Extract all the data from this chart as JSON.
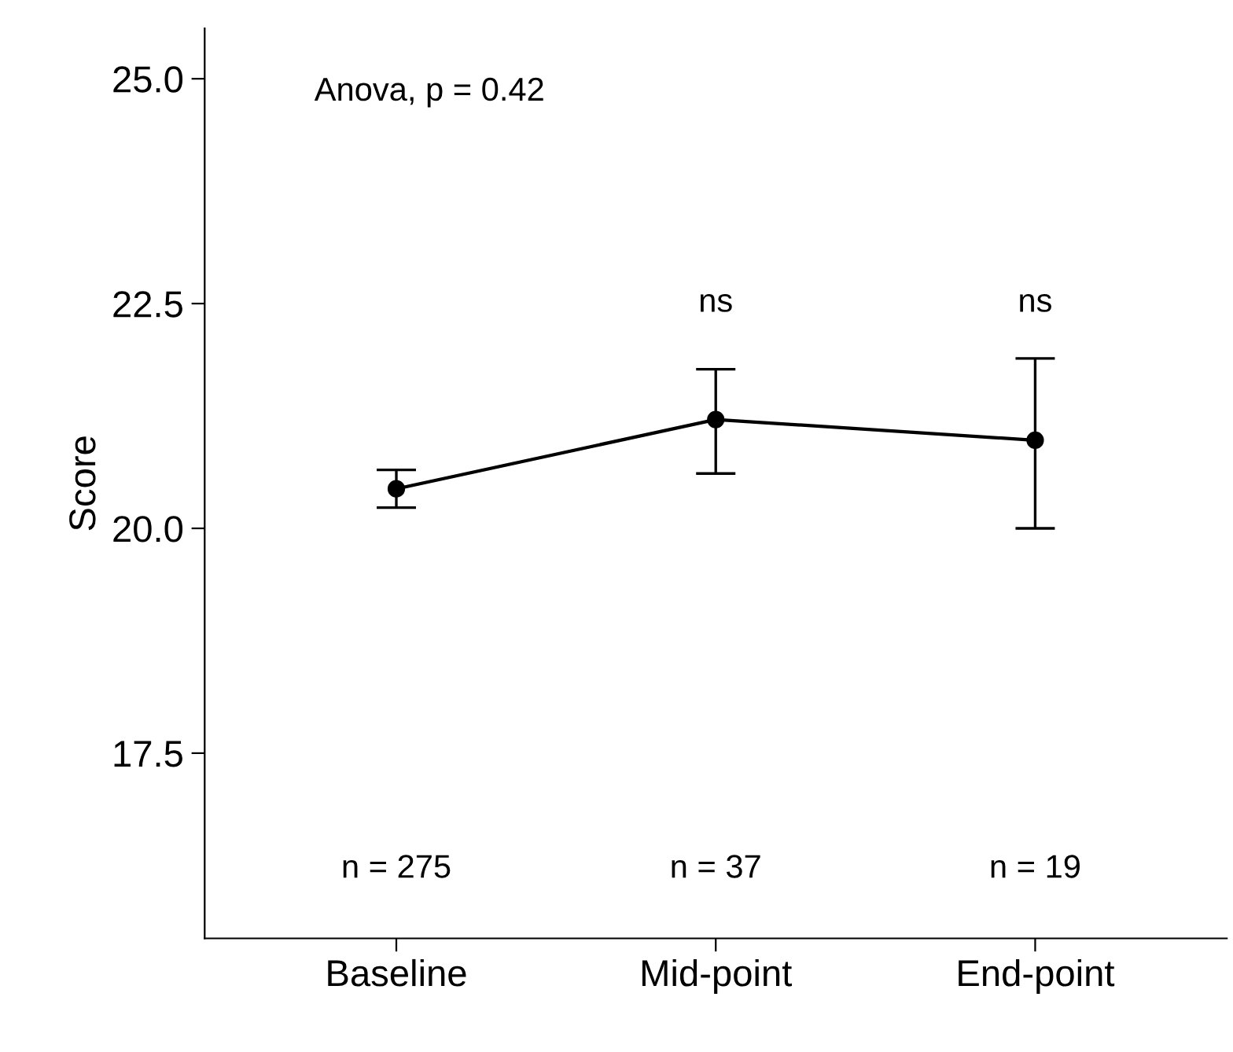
{
  "chart_data": {
    "type": "line",
    "ylabel": "Score",
    "categories": [
      "Baseline",
      "Mid-point",
      "End-point"
    ],
    "series": [
      {
        "color": "#000000",
        "values": [
          20.44,
          21.21,
          20.98
        ],
        "errors": [
          [
            20.23,
            20.65
          ],
          [
            20.61,
            21.77
          ],
          [
            20.0,
            21.89
          ]
        ]
      }
    ],
    "ylim": [
      15.44,
      25.56
    ],
    "yticks": [
      {
        "value": 17.5,
        "label": "17.5"
      },
      {
        "value": 20.0,
        "label": "20.0"
      },
      {
        "value": 22.5,
        "label": "22.5"
      },
      {
        "value": 25.0,
        "label": "25.0"
      }
    ],
    "grid": false,
    "legend": false,
    "marker": "circle",
    "line_style": "solid",
    "annotations": [
      "Anova, p = 0.42",
      "ns",
      "ns",
      "n = 275",
      "n = 37",
      "n = 19"
    ]
  }
}
